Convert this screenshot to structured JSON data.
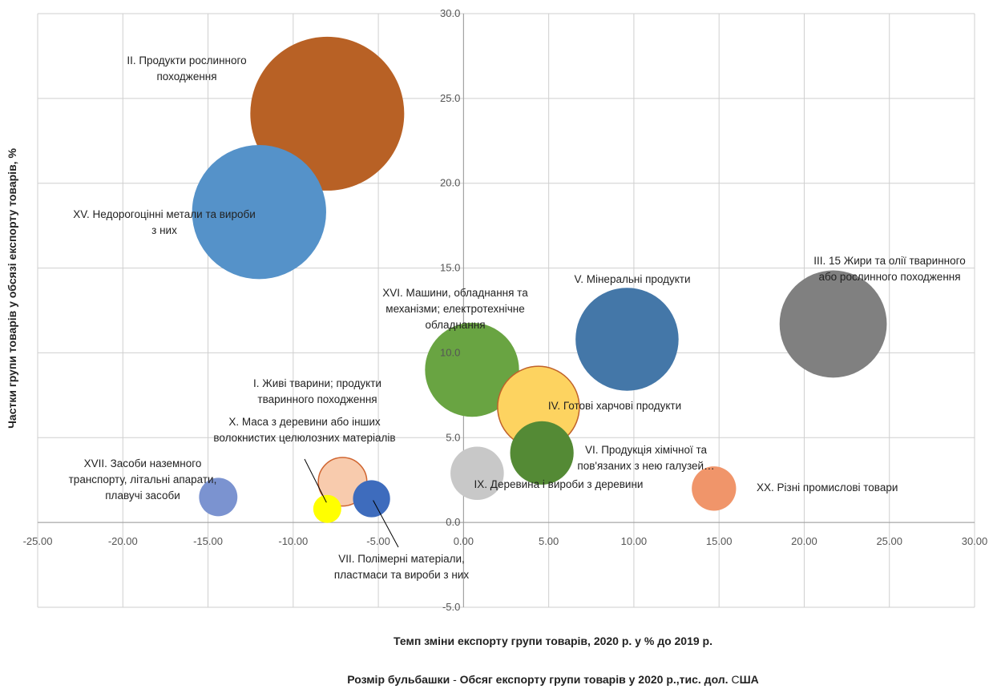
{
  "chart_data": {
    "type": "scatter",
    "subtype": "bubble",
    "xlabel": "Темп зміни експорту групи товарів, 2020 р. у % до 2019 р.",
    "ylabel": "Частки групи товарів у обсязі експорту товарів, %",
    "size_label_prefix": "Розмір бульбашки",
    "size_label_sep": "-",
    "size_label_main": "Обсяг експорту групи товарів у 2020 р.,тис. дол.",
    "size_label_c": "С",
    "size_label_tail": "ША",
    "xlim": [
      -25,
      30
    ],
    "ylim": [
      -5,
      30
    ],
    "x_ticks": [
      "-25.00",
      "-20.00",
      "-15.00",
      "-10.00",
      "-5.00",
      "0.00",
      "5.00",
      "10.00",
      "15.00",
      "20.00",
      "25.00",
      "30.00"
    ],
    "y_ticks": [
      "-5.0",
      "0.0",
      "5.0",
      "10.0",
      "15.0",
      "20.0",
      "25.0",
      "30.0"
    ],
    "grid": true,
    "legend": "none",
    "points": [
      {
        "x": -8.0,
        "y": 24.1,
        "size": 24.1,
        "color": "#b86125",
        "label_lines": [
          "II. Продукти рослинного",
          "походження"
        ]
      },
      {
        "x": -12.0,
        "y": 18.3,
        "size": 18.3,
        "color": "#5592c9",
        "label_lines": [
          "XV. Недорогоцінні метали та вироби",
          "з них"
        ]
      },
      {
        "x": 21.7,
        "y": 11.7,
        "size": 11.7,
        "color": "#808080",
        "label_lines": [
          "III. 15 Жири та олії тваринного",
          "або рослинного походження"
        ]
      },
      {
        "x": 9.6,
        "y": 10.8,
        "size": 10.8,
        "color": "#4477a8",
        "label_lines": [
          "V. Мінеральні продукти"
        ]
      },
      {
        "x": 0.5,
        "y": 9.0,
        "size": 9.0,
        "color": "#69a442",
        "label_lines": [
          "XVI. Машини, обладнання та",
          "механізми; електротехнічне",
          "обладнання"
        ]
      },
      {
        "x": 4.4,
        "y": 6.8,
        "size": 6.8,
        "color": "#fdd360",
        "stroke": "#c0622a",
        "label_lines": [
          "IV. Готові харчові продукти"
        ]
      },
      {
        "x": 4.6,
        "y": 4.1,
        "size": 4.1,
        "color": "#548a35",
        "label_lines": [
          "VI. Продукція хімічної та",
          "пов'язаних з нею галузей…"
        ]
      },
      {
        "x": 0.8,
        "y": 2.9,
        "size": 2.9,
        "color": "#c8c8c8",
        "label_lines": [
          "IX. Деревина і вироби з деревини"
        ]
      },
      {
        "x": -7.1,
        "y": 2.4,
        "size": 2.4,
        "color": "#f8cbad",
        "stroke": "#d06530",
        "label_lines": [
          "I. Живі тварини; продукти",
          "тваринного походження"
        ]
      },
      {
        "x": -8.0,
        "y": 0.8,
        "size": 0.8,
        "color": "#ffff00",
        "label_lines": [
          "X. Маса з деревини або інших",
          "волокнистих целюлозних матеріалів"
        ]
      },
      {
        "x": -5.4,
        "y": 1.4,
        "size": 1.4,
        "color": "#3e6cbd",
        "label_lines": [
          "VII. Полімерні матеріали,",
          "пластмаси та вироби з них"
        ]
      },
      {
        "x": -14.4,
        "y": 1.5,
        "size": 1.5,
        "color": "#7b93d0",
        "label_lines": [
          "XVII. Засоби наземного",
          "транспорту, літальні апарати,",
          "плавучі засоби"
        ]
      },
      {
        "x": 14.7,
        "y": 2.0,
        "size": 2.0,
        "color": "#f0956a",
        "label_lines": [
          "XX. Різні промислові товари"
        ]
      }
    ]
  }
}
